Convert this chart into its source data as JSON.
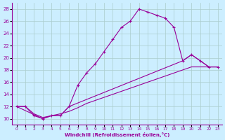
{
  "xlabel": "Windchill (Refroidissement éolien,°C)",
  "xlim": [
    -0.5,
    23.5
  ],
  "ylim": [
    9,
    29
  ],
  "yticks": [
    10,
    12,
    14,
    16,
    18,
    20,
    22,
    24,
    26,
    28
  ],
  "xticks": [
    0,
    1,
    2,
    3,
    4,
    5,
    6,
    7,
    8,
    9,
    10,
    11,
    12,
    13,
    14,
    15,
    16,
    17,
    18,
    19,
    20,
    21,
    22,
    23
  ],
  "bg_color": "#cceeff",
  "line_color": "#990099",
  "grid_color": "#aacccc",
  "line1_x": [
    0,
    1,
    2,
    3,
    4,
    5,
    6,
    7,
    8,
    9,
    10,
    11,
    12,
    13,
    14,
    15,
    16,
    17,
    18,
    19,
    20,
    21,
    22,
    23
  ],
  "line1_y": [
    12,
    12,
    10.5,
    10,
    10.5,
    10.5,
    12.0,
    15.5,
    17.5,
    19.0,
    21.0,
    23.0,
    25.0,
    26.0,
    28.0,
    27.5,
    27.0,
    26.5,
    25.0,
    19.5,
    20.5,
    19.5,
    18.5,
    18.5
  ],
  "line2_x": [
    0,
    3,
    4,
    5,
    6,
    19,
    20,
    21,
    22,
    23
  ],
  "line2_y": [
    12,
    10,
    10.5,
    10.5,
    12,
    19.5,
    20.5,
    19.5,
    18.5,
    18.5
  ],
  "line3_x": [
    0,
    1,
    2,
    3,
    4,
    5,
    6,
    7,
    8,
    9,
    10,
    11,
    12,
    13,
    14,
    15,
    16,
    17,
    18,
    19,
    20,
    21,
    22,
    23
  ],
  "line3_y": [
    12,
    12,
    10.8,
    10.2,
    10.5,
    10.8,
    11.2,
    11.8,
    12.5,
    13.0,
    13.5,
    14.0,
    14.5,
    15.0,
    15.5,
    16.0,
    16.5,
    17.0,
    17.5,
    18.0,
    18.5,
    18.5,
    18.5,
    18.5
  ]
}
